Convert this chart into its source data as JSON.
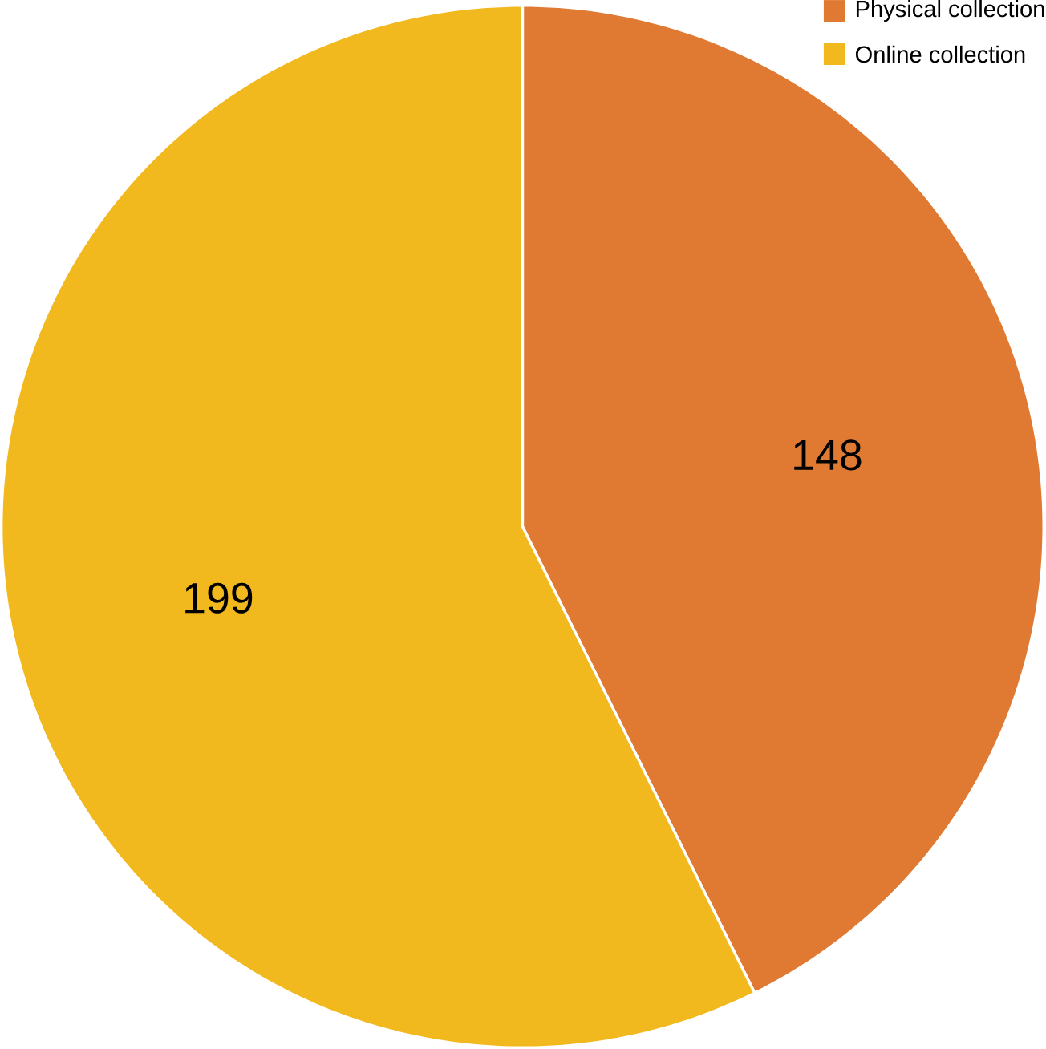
{
  "chart_data": {
    "type": "pie",
    "categories": [
      "Physical collection",
      "Online collection"
    ],
    "values": [
      148,
      199
    ],
    "colors": [
      "#e07a32",
      "#f2b91e"
    ],
    "data_labels": true,
    "legend": "top right"
  }
}
